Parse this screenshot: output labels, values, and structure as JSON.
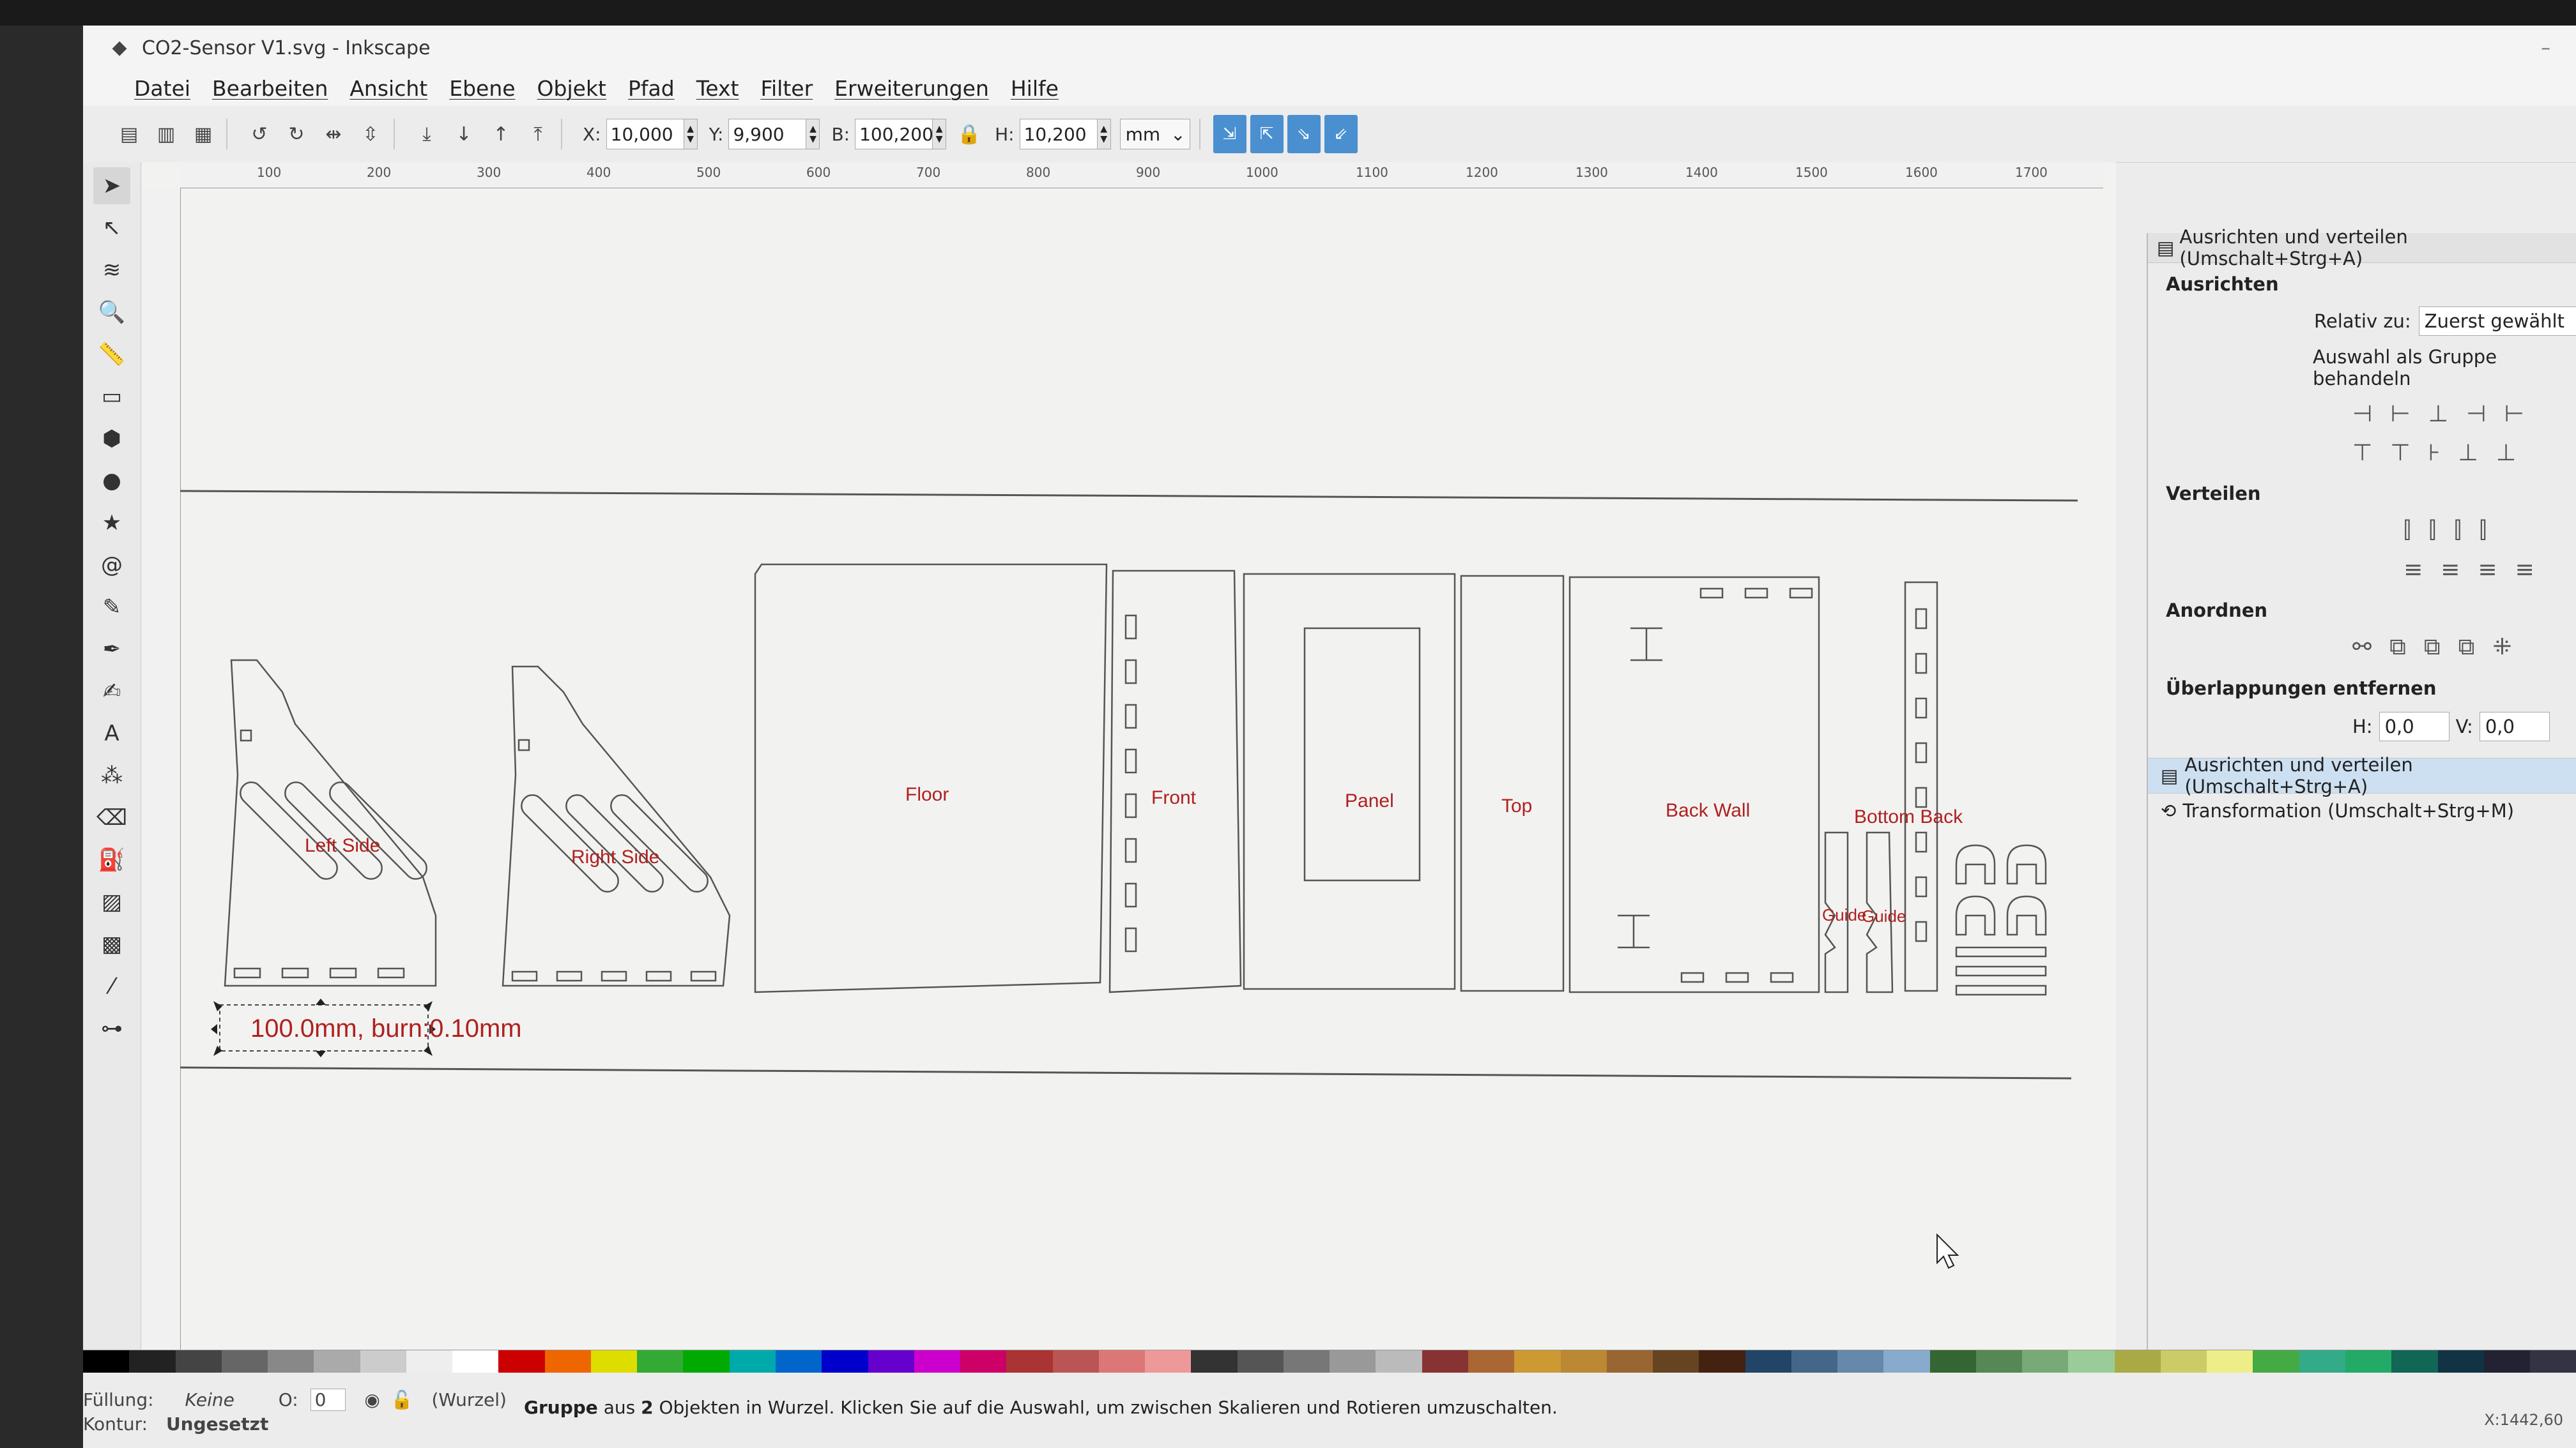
{
  "window": {
    "title": "CO2-Sensor V1.svg - Inkscape"
  },
  "menu": [
    "Datei",
    "Bearbeiten",
    "Ansicht",
    "Ebene",
    "Objekt",
    "Pfad",
    "Text",
    "Filter",
    "Erweiterungen",
    "Hilfe"
  ],
  "toolbar": {
    "x_label": "X:",
    "x_value": "10,000",
    "y_label": "Y:",
    "y_value": "9,900",
    "w_label": "B:",
    "w_value": "100,200",
    "h_label": "H:",
    "h_value": "10,200",
    "unit": "mm"
  },
  "ruler_ticks": [
    "100",
    "200",
    "300",
    "400",
    "500",
    "600",
    "700",
    "800",
    "900",
    "1000",
    "1100",
    "1200",
    "1300",
    "1400",
    "1500",
    "1600",
    "1700"
  ],
  "canvas": {
    "parts": [
      "Left Side",
      "Right Side",
      "Floor",
      "Front",
      "Panel",
      "Top",
      "Back Wall",
      "Bottom Back",
      "Guide",
      "Guide"
    ],
    "dimension_label": "100.0mm, burn:0.10mm"
  },
  "panel": {
    "title": "Ausrichten und verteilen (Umschalt+Strg+A)",
    "section_align": "Ausrichten",
    "relative_label": "Relativ zu:",
    "relative_value": "Zuerst gewählt",
    "group_label": "Auswahl als Gruppe behandeln",
    "section_distribute": "Verteilen",
    "section_arrange": "Anordnen",
    "section_overlap": "Überlappungen entfernen",
    "overlap_h_label": "H:",
    "overlap_h": "0,0",
    "overlap_v_label": "V:",
    "overlap_v": "0,0",
    "dock_items": [
      "Ausrichten und verteilen (Umschalt+Strg+A)",
      "Transformation (Umschalt+Strg+M)"
    ]
  },
  "status": {
    "fill_label": "Füllung:",
    "fill_value": "Keine",
    "stroke_label": "Kontur:",
    "stroke_value": "Ungesetzt",
    "opacity_label": "O:",
    "opacity_value": "0",
    "layer": "(Wurzel)",
    "msg_bold": "Gruppe",
    "msg_mid": " aus ",
    "msg_count": "2",
    "msg_rest": " Objekten in Wurzel. Klicken Sie auf die Auswahl, um zwischen Skalieren und Rotieren umzuschalten.",
    "coords": "X:1442,60"
  },
  "colors": {
    "accent": "#4a8fd0",
    "label_red": "#b02020",
    "line": "#555555"
  }
}
